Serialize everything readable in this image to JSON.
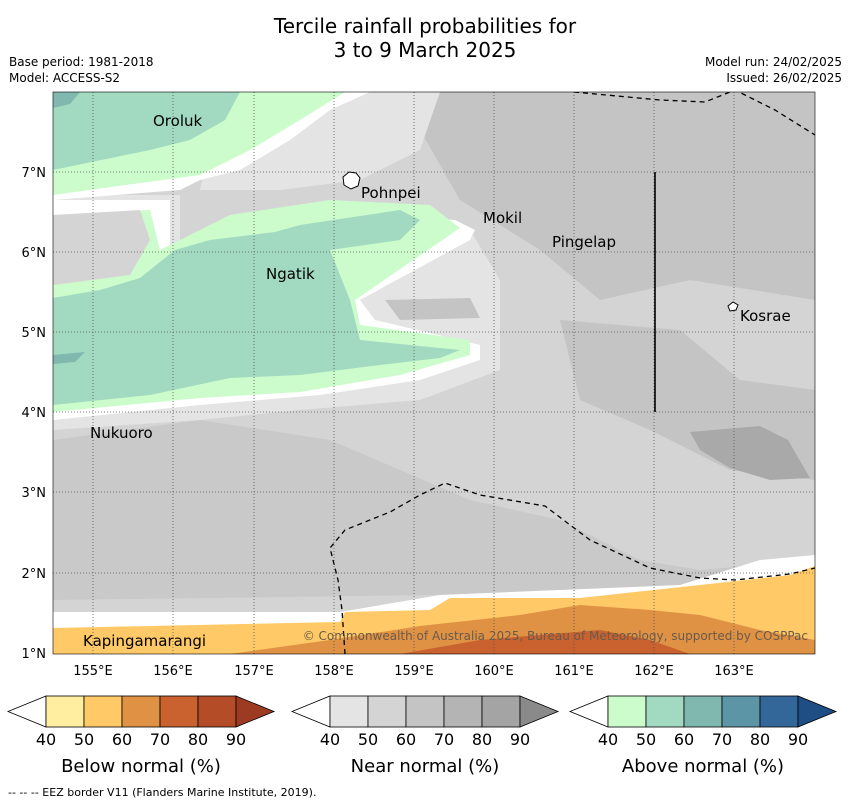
{
  "title": {
    "line1": "Tercile rainfall probabilities for",
    "line2": "3 to 9 March 2025"
  },
  "info_left": {
    "base_period": "Base period: 1981-2018",
    "model": "Model: ACCESS-S2"
  },
  "info_right": {
    "model_run": "Model run: 24/02/2025",
    "issued": "Issued: 26/02/2025"
  },
  "map": {
    "x_ticks": [
      "155°E",
      "156°E",
      "157°E",
      "158°E",
      "159°E",
      "160°E",
      "161°E",
      "162°E",
      "163°E"
    ],
    "y_ticks": [
      "7°N",
      "6°N",
      "5°N",
      "4°N",
      "3°N",
      "2°N",
      "1°N"
    ],
    "places": {
      "oroluk": "Oroluk",
      "pohnpei": "Pohnpei",
      "mokil": "Mokil",
      "pingelap": "Pingelap",
      "ngatik": "Ngatik",
      "kosrae": "Kosrae",
      "nukuoro": "Nukuoro",
      "kapingamarangi": "Kapingamarangi"
    },
    "copyright": "© Commonwealth of Australia 2025, Bureau of Meteorology, supported by COSPPac"
  },
  "legends": [
    {
      "label": "Below normal (%)",
      "ticks": [
        "40",
        "50",
        "60",
        "70",
        "80",
        "90"
      ],
      "colors": [
        "#ffffff",
        "#ffeda0",
        "#fec966",
        "#df9244",
        "#c9622f",
        "#b44c28",
        "#9c3b22"
      ]
    },
    {
      "label": "Near normal (%)",
      "ticks": [
        "40",
        "50",
        "60",
        "70",
        "80",
        "90"
      ],
      "colors": [
        "#ffffff",
        "#e4e4e4",
        "#d4d4d4",
        "#c4c4c4",
        "#b4b4b4",
        "#a4a4a4",
        "#8a8a8a"
      ]
    },
    {
      "label": "Above normal (%)",
      "ticks": [
        "40",
        "50",
        "60",
        "70",
        "80",
        "90"
      ],
      "colors": [
        "#ffffff",
        "#ccfccc",
        "#a2d9c1",
        "#80b8b0",
        "#5b95a6",
        "#336799",
        "#1f4e84"
      ]
    }
  ],
  "footnote": "--  --  -- EEZ border V11 (Flanders Marine Institute, 2019)."
}
